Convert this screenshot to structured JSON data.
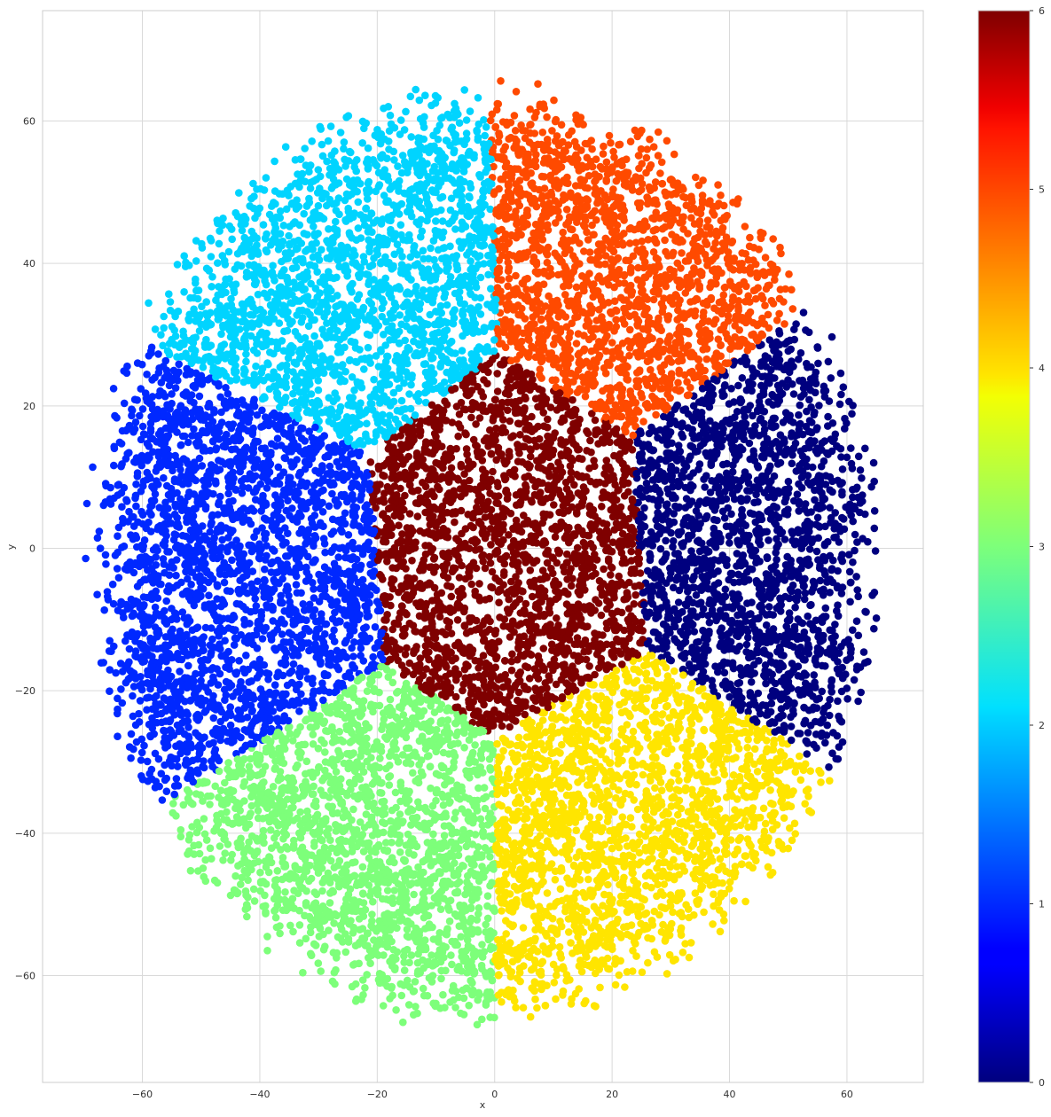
{
  "chart_data": {
    "type": "scatter",
    "title": "",
    "xlabel": "x",
    "ylabel": "y",
    "xlim": [
      -77,
      73
    ],
    "ylim": [
      -75,
      75.5
    ],
    "xticks": [
      -60,
      -40,
      -20,
      0,
      20,
      40,
      60
    ],
    "yticks": [
      -60,
      -40,
      -20,
      0,
      20,
      40,
      60
    ],
    "grid": true,
    "colormap": "jet",
    "colorbar": {
      "min": 0,
      "max": 6,
      "ticks": [
        0,
        1,
        2,
        3,
        4,
        5,
        6
      ]
    },
    "cluster_colors": [
      "#00007f",
      "#0028ff",
      "#00d4ff",
      "#7dff7a",
      "#ffe500",
      "#ff4a00",
      "#7f0000"
    ],
    "series": [
      {
        "label": 0,
        "center": [
          47,
          4
        ],
        "approx_extent": {
          "x": [
            21,
            66
          ],
          "y": [
            -25,
            36
          ]
        }
      },
      {
        "label": 1,
        "center": [
          -42,
          -4
        ],
        "approx_extent": {
          "x": [
            -70,
            -20
          ],
          "y": [
            -36,
            30
          ]
        }
      },
      {
        "label": 2,
        "center": [
          -24,
          40
        ],
        "approx_extent": {
          "x": [
            -56,
            2
          ],
          "y": [
            13,
            66
          ]
        }
      },
      {
        "label": 3,
        "center": [
          -22,
          -42
        ],
        "approx_extent": {
          "x": [
            -52,
            4
          ],
          "y": [
            -68,
            -14
          ]
        }
      },
      {
        "label": 4,
        "center": [
          22,
          -42
        ],
        "approx_extent": {
          "x": [
            2,
            56
          ],
          "y": [
            -67,
            -12
          ]
        }
      },
      {
        "label": 5,
        "center": [
          24,
          42
        ],
        "approx_extent": {
          "x": [
            -4,
            55
          ],
          "y": [
            16,
            68
          ]
        }
      },
      {
        "label": 6,
        "center": [
          2,
          0
        ],
        "approx_extent": {
          "x": [
            -22,
            24
          ],
          "y": [
            -26,
            24
          ]
        }
      }
    ]
  }
}
